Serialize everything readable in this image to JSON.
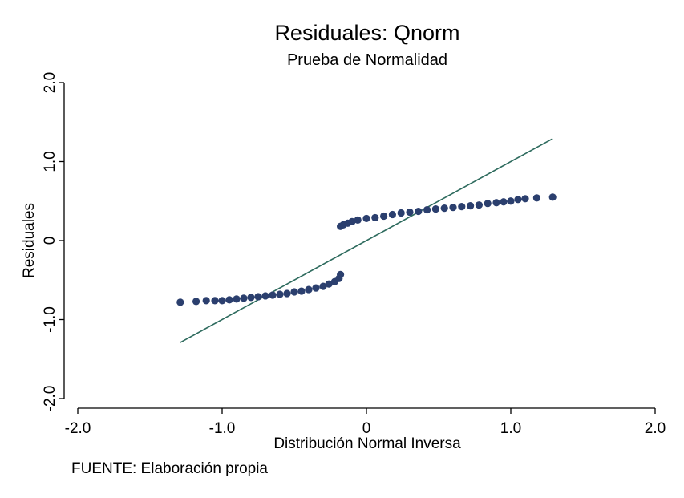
{
  "chart_data": {
    "type": "scatter",
    "title": "Residuales: Qnorm",
    "subtitle": "Prueba de Normalidad",
    "xlabel": "Distribución Normal Inversa",
    "ylabel": "Residuales",
    "note": "FUENTE: Elaboración propia",
    "xlim": [
      -2.0,
      2.0
    ],
    "ylim": [
      -2.0,
      2.0
    ],
    "x_ticks": [
      -2.0,
      -1.0,
      0,
      1.0,
      2.0
    ],
    "x_tick_labels": [
      "-2.0",
      "-1.0",
      "0",
      "1.0",
      "2.0"
    ],
    "y_ticks": [
      -2.0,
      -1.0,
      0,
      1.0,
      2.0
    ],
    "y_tick_labels": [
      "-2.0",
      "-1.0",
      "0",
      "1.0",
      "2.0"
    ],
    "grid": false,
    "marker_color": "#2b3f6e",
    "line_color": "#2e6b5e",
    "reference_line": {
      "x": [
        -1.29,
        1.29
      ],
      "y": [
        -1.29,
        1.29
      ]
    },
    "series": [
      {
        "points": [
          [
            -1.29,
            -0.78
          ],
          [
            -1.18,
            -0.77
          ],
          [
            -1.11,
            -0.76
          ],
          [
            -1.05,
            -0.76
          ],
          [
            -1.0,
            -0.76
          ],
          [
            -0.95,
            -0.75
          ],
          [
            -0.9,
            -0.74
          ],
          [
            -0.85,
            -0.73
          ],
          [
            -0.8,
            -0.72
          ],
          [
            -0.75,
            -0.71
          ],
          [
            -0.7,
            -0.7
          ],
          [
            -0.65,
            -0.69
          ],
          [
            -0.6,
            -0.68
          ],
          [
            -0.55,
            -0.67
          ],
          [
            -0.5,
            -0.65
          ],
          [
            -0.45,
            -0.64
          ],
          [
            -0.4,
            -0.62
          ],
          [
            -0.35,
            -0.6
          ],
          [
            -0.3,
            -0.58
          ],
          [
            -0.26,
            -0.55
          ],
          [
            -0.22,
            -0.52
          ],
          [
            -0.19,
            -0.48
          ],
          [
            -0.18,
            -0.43
          ],
          [
            -0.18,
            0.18
          ],
          [
            -0.16,
            0.2
          ],
          [
            -0.13,
            0.22
          ],
          [
            -0.1,
            0.24
          ],
          [
            -0.06,
            0.26
          ],
          [
            0.0,
            0.28
          ],
          [
            0.06,
            0.29
          ],
          [
            0.12,
            0.31
          ],
          [
            0.18,
            0.33
          ],
          [
            0.24,
            0.35
          ],
          [
            0.3,
            0.36
          ],
          [
            0.36,
            0.37
          ],
          [
            0.42,
            0.39
          ],
          [
            0.48,
            0.4
          ],
          [
            0.54,
            0.41
          ],
          [
            0.6,
            0.42
          ],
          [
            0.66,
            0.43
          ],
          [
            0.72,
            0.44
          ],
          [
            0.78,
            0.45
          ],
          [
            0.84,
            0.47
          ],
          [
            0.9,
            0.48
          ],
          [
            0.95,
            0.49
          ],
          [
            1.0,
            0.5
          ],
          [
            1.05,
            0.52
          ],
          [
            1.1,
            0.53
          ],
          [
            1.18,
            0.54
          ],
          [
            1.29,
            0.55
          ]
        ]
      }
    ]
  }
}
